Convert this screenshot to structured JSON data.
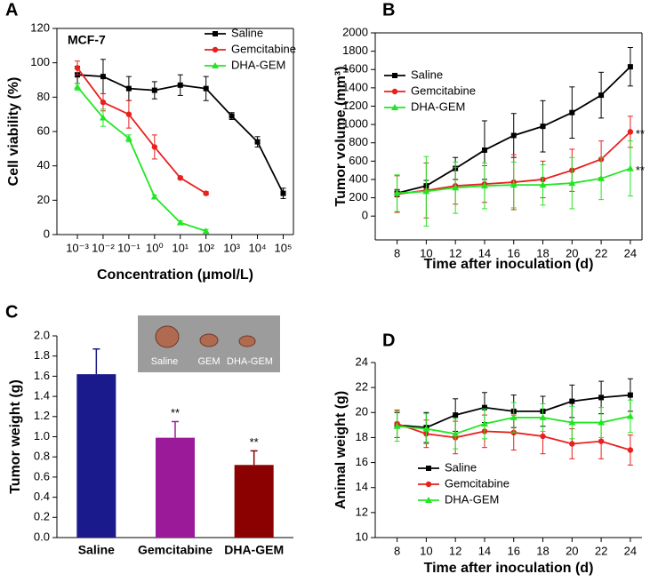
{
  "chart_data": [
    {
      "type": "line",
      "label": "A",
      "annotation": "MCF-7",
      "xscale": "log",
      "frame": true,
      "legend": "upper right",
      "xlabel": "Concentration (μmol/L)",
      "ylabel": "Cell viability (%)",
      "xlim": [
        0.00016,
        250000
      ],
      "xticks": [
        {
          "value": 0.001,
          "label": "10⁻³"
        },
        {
          "value": 0.01,
          "label": "10⁻²"
        },
        {
          "value": 0.1,
          "label": "10⁻¹"
        },
        {
          "value": 1,
          "label": "10⁰"
        },
        {
          "value": 10,
          "label": "10¹"
        },
        {
          "value": 100,
          "label": "10²"
        },
        {
          "value": 1000,
          "label": "10³"
        },
        {
          "value": 10000,
          "label": "10⁴"
        },
        {
          "value": 100000,
          "label": "10⁵"
        }
      ],
      "ylim": [
        0,
        120
      ],
      "yticks": [
        0,
        20,
        40,
        60,
        80,
        100,
        120
      ],
      "series": [
        {
          "name": "Saline",
          "color": "#000000",
          "marker": "square",
          "x": [
            0.001,
            0.01,
            0.1,
            1,
            10,
            100,
            1000,
            10000,
            100000
          ],
          "values": [
            93,
            92,
            85,
            84,
            87,
            85,
            69,
            54,
            24
          ],
          "errors": [
            5,
            10,
            7,
            5,
            6,
            7,
            2,
            3,
            3
          ]
        },
        {
          "name": "Gemcitabine",
          "color": "#e8201e",
          "marker": "circle",
          "x": [
            0.001,
            0.01,
            0.1,
            1,
            10,
            100
          ],
          "values": [
            97,
            77,
            70,
            51,
            33,
            24
          ],
          "errors": [
            4,
            5,
            8,
            7,
            1,
            1
          ]
        },
        {
          "name": "DHA-GEM",
          "color": "#22e622",
          "marker": "triangle",
          "x": [
            0.001,
            0.01,
            0.1,
            1,
            10,
            100
          ],
          "values": [
            86,
            68,
            56,
            22,
            7,
            2
          ],
          "errors": [
            2,
            5,
            2,
            1,
            1,
            1
          ]
        }
      ]
    },
    {
      "type": "line",
      "label": "B",
      "frame": true,
      "legend": "upper left",
      "xlabel": "Time after inoculation (d)",
      "ylabel": "Tumor volume (mm³)",
      "annotations": [
        "**",
        "**"
      ],
      "x": [
        8,
        10,
        12,
        14,
        16,
        18,
        20,
        22,
        24
      ],
      "xlim": [
        6.5,
        24.8
      ],
      "xticks": [
        8,
        10,
        12,
        14,
        16,
        18,
        20,
        22,
        24
      ],
      "ylim": [
        -260,
        2000
      ],
      "yticks": [
        0,
        200,
        400,
        600,
        800,
        1000,
        1200,
        1400,
        1600,
        1800,
        2000
      ],
      "series": [
        {
          "name": "Saline",
          "color": "#000000",
          "marker": "square",
          "values": [
            250,
            330,
            520,
            720,
            880,
            980,
            1130,
            1320,
            1630
          ],
          "errors": [
            40,
            60,
            120,
            320,
            240,
            280,
            280,
            250,
            210
          ]
        },
        {
          "name": "Gemcitabine",
          "color": "#e8201e",
          "marker": "circle",
          "values": [
            240,
            280,
            330,
            350,
            370,
            400,
            500,
            620,
            920
          ],
          "errors": [
            200,
            300,
            200,
            200,
            300,
            200,
            230,
            200,
            170
          ]
        },
        {
          "name": "DHA-GEM",
          "color": "#22e622",
          "marker": "triangle",
          "values": [
            250,
            270,
            310,
            330,
            340,
            340,
            360,
            410,
            520
          ],
          "errors": [
            200,
            380,
            280,
            250,
            250,
            220,
            280,
            230,
            300
          ]
        }
      ]
    },
    {
      "type": "bar",
      "label": "C",
      "ylabel": "Tumor weight (g)",
      "annotations": [
        "**",
        "**"
      ],
      "inset_labels": [
        "Saline",
        "GEM",
        "DHA-GEM"
      ],
      "categories": [
        "Saline",
        "Gemcitabine",
        "DHA-GEM"
      ],
      "values": [
        1.62,
        0.99,
        0.72
      ],
      "errors": [
        0.25,
        0.16,
        0.14
      ],
      "colors": [
        "#1a1a8c",
        "#9a1a9a",
        "#8b0000"
      ],
      "ylim": [
        0,
        2.0
      ],
      "yticks": [
        {
          "value": 0,
          "label": "0.0"
        },
        {
          "value": 0.2,
          "label": "0.2"
        },
        {
          "value": 0.4,
          "label": "0.4"
        },
        {
          "value": 0.6,
          "label": "0.6"
        },
        {
          "value": 0.8,
          "label": "0.8"
        },
        {
          "value": 1.0,
          "label": "1.0"
        },
        {
          "value": 1.2,
          "label": "1.2"
        },
        {
          "value": 1.4,
          "label": "1.4"
        },
        {
          "value": 1.6,
          "label": "1.6"
        },
        {
          "value": 1.8,
          "label": "1.8"
        },
        {
          "value": 2.0,
          "label": "2.0"
        }
      ]
    },
    {
      "type": "line",
      "label": "D",
      "frame": false,
      "legend": "lower left",
      "xlabel": "Time after inoculation (d)",
      "ylabel": "Animal weight (g)",
      "x": [
        8,
        10,
        12,
        14,
        16,
        18,
        20,
        22,
        24
      ],
      "xlim": [
        6.5,
        24.8
      ],
      "xticks": [
        8,
        10,
        12,
        14,
        16,
        18,
        20,
        22,
        24
      ],
      "ylim": [
        10,
        24
      ],
      "yticks": [
        10,
        12,
        14,
        16,
        18,
        20,
        22,
        24
      ],
      "series": [
        {
          "name": "Saline",
          "color": "#000000",
          "marker": "square",
          "values": [
            19.0,
            18.8,
            19.8,
            20.4,
            20.1,
            20.1,
            20.9,
            21.2,
            21.4
          ],
          "errors": [
            1,
            1.2,
            1.3,
            1.2,
            1.3,
            1.2,
            1.3,
            1.3,
            1.3
          ]
        },
        {
          "name": "Gemcitabine",
          "color": "#e8201e",
          "marker": "circle",
          "values": [
            19.1,
            18.3,
            18.0,
            18.5,
            18.4,
            18.1,
            17.5,
            17.7,
            17.0
          ],
          "errors": [
            1.1,
            1.1,
            1.3,
            1.3,
            1.4,
            1.4,
            1.2,
            1.4,
            1.2
          ]
        },
        {
          "name": "DHA-GEM",
          "color": "#22e622",
          "marker": "triangle",
          "values": [
            18.9,
            18.7,
            18.3,
            19.1,
            19.6,
            19.6,
            19.2,
            19.2,
            19.7
          ],
          "errors": [
            1.2,
            1.2,
            1.2,
            1.2,
            1.2,
            1.1,
            1.3,
            1.2,
            1.3
          ]
        }
      ]
    }
  ]
}
